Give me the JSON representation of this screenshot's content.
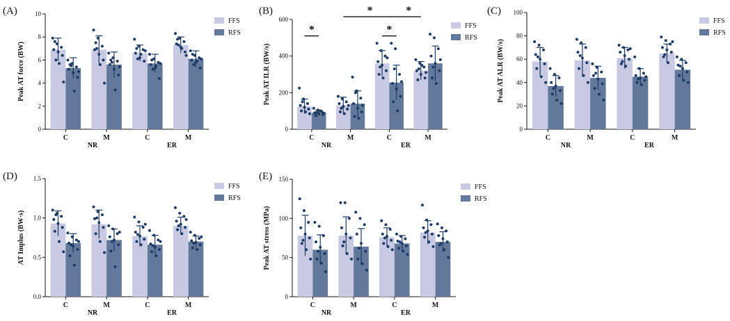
{
  "legend": {
    "ffs": "FFS",
    "rfs": "RFS"
  },
  "colors": {
    "ffs": "#c8cae3",
    "rfs": "#63799b",
    "dot": "#1c3a63",
    "axis": "#111111"
  },
  "chart_data": [
    {
      "type": "bar",
      "panel": "(A)",
      "ylabel": "Peak AT force (BW)",
      "ylim": [
        0,
        10
      ],
      "yticks": [
        "0",
        "2",
        "4",
        "6",
        "8",
        "10"
      ],
      "categories": [
        "C",
        "M",
        "C",
        "M"
      ],
      "groups": [
        "NR",
        "ER"
      ],
      "series": [
        {
          "name": "FFS",
          "values": [
            6.9,
            6.9,
            6.6,
            7.3
          ],
          "err": [
            1.0,
            1.2,
            0.7,
            0.7
          ],
          "points": [
            [
              7.9,
              7.4,
              7.1,
              6.9,
              6.7,
              6.4,
              7.6,
              5.7,
              4.1,
              6.0
            ],
            [
              8.6,
              7.9,
              7.2,
              6.9,
              6.5,
              6.0,
              7.5,
              5.6,
              4.0,
              7.0
            ],
            [
              7.8,
              7.2,
              6.9,
              6.6,
              6.2,
              5.9,
              7.0,
              6.5,
              6.8,
              6.1
            ],
            [
              8.3,
              7.9,
              7.6,
              7.4,
              7.1,
              6.7,
              7.8,
              7.0,
              6.4,
              7.3
            ]
          ]
        },
        {
          "name": "RFS",
          "values": [
            5.3,
            5.6,
            5.7,
            6.1
          ],
          "err": [
            0.9,
            1.1,
            0.8,
            0.7
          ],
          "points": [
            [
              6.0,
              5.7,
              5.4,
              5.2,
              4.9,
              4.5,
              5.6,
              3.3,
              5.0,
              5.5
            ],
            [
              6.6,
              6.2,
              5.9,
              5.6,
              5.2,
              4.7,
              6.0,
              3.4,
              5.4,
              5.8
            ],
            [
              6.5,
              6.1,
              5.8,
              5.6,
              5.3,
              4.4,
              6.0,
              5.5,
              5.7,
              5.2
            ],
            [
              6.8,
              6.4,
              6.2,
              6.0,
              5.8,
              5.3,
              6.5,
              5.9,
              6.1,
              5.6
            ]
          ]
        }
      ]
    },
    {
      "type": "bar",
      "panel": "(B)",
      "ylabel": "Peak AT ILR (BW/s)",
      "ylim": [
        0,
        600
      ],
      "yticks": [
        "0",
        "200",
        "400",
        "600"
      ],
      "categories": [
        "C",
        "M",
        "C",
        "M"
      ],
      "groups": [
        "NR",
        "ER"
      ],
      "series": [
        {
          "name": "FFS",
          "values": [
            125,
            130,
            360,
            320
          ],
          "err": [
            40,
            45,
            70,
            50
          ],
          "points": [
            [
              225,
              165,
              140,
              130,
              120,
              110,
              100,
              95,
              85,
              150
            ],
            [
              180,
              165,
              150,
              140,
              125,
              110,
              95,
              85,
              130,
              115
            ],
            [
              470,
              430,
              400,
              370,
              350,
              320,
              300,
              280,
              390,
              340
            ],
            [
              380,
              360,
              340,
              320,
              300,
              280,
              270,
              350,
              310,
              330
            ]
          ]
        },
        {
          "name": "RFS",
          "values": [
            90,
            140,
            255,
            360
          ],
          "err": [
            15,
            70,
            95,
            95
          ],
          "points": [
            [
              115,
              105,
              95,
              90,
              85,
              80,
              75,
              100,
              88,
              92
            ],
            [
              285,
              210,
              170,
              140,
              115,
              95,
              70,
              60,
              130,
              200
            ],
            [
              470,
              440,
              300,
              250,
              220,
              180,
              150,
              100,
              260,
              330
            ],
            [
              520,
              500,
              440,
              400,
              360,
              320,
              280,
              250,
              380,
              340
            ]
          ]
        }
      ],
      "annotations": [
        {
          "text": "*",
          "from": 0,
          "to": 1,
          "level": 510
        },
        {
          "text": "*",
          "from": 2,
          "to": 5,
          "level": 615
        },
        {
          "text": "*",
          "from": 4,
          "to": 5,
          "level": 510
        },
        {
          "text": "*",
          "from": 5,
          "to": 6,
          "level": 615
        }
      ]
    },
    {
      "type": "bar",
      "panel": "(C)",
      "ylabel": "Peak AT ALR (BW/s)",
      "ylim": [
        0,
        100
      ],
      "yticks": [
        "0",
        "20",
        "40",
        "60",
        "80",
        "100"
      ],
      "categories": [
        "C",
        "M",
        "C",
        "M"
      ],
      "groups": [
        "NR",
        "ER"
      ],
      "series": [
        {
          "name": "FFS",
          "values": [
            58,
            59,
            61,
            65
          ],
          "err": [
            12,
            14,
            9,
            8
          ],
          "points": [
            [
              75,
              72,
              68,
              64,
              60,
              56,
              52,
              45,
              40,
              62
            ],
            [
              77,
              74,
              70,
              66,
              61,
              57,
              52,
              46,
              40,
              63
            ],
            [
              72,
              70,
              68,
              66,
              63,
              60,
              56,
              54,
              69,
              58
            ],
            [
              79,
              76,
              73,
              70,
              68,
              66,
              62,
              57,
              75,
              64
            ]
          ]
        },
        {
          "name": "RFS",
          "values": [
            37,
            44,
            45,
            51
          ],
          "err": [
            9,
            10,
            7,
            8
          ],
          "points": [
            [
              52,
              47,
              44,
              40,
              37,
              33,
              30,
              25,
              22,
              35
            ],
            [
              56,
              53,
              49,
              46,
              43,
              39,
              35,
              30,
              25,
              48
            ],
            [
              62,
              52,
              48,
              46,
              44,
              42,
              40,
              38,
              45,
              43
            ],
            [
              62,
              60,
              57,
              55,
              52,
              49,
              46,
              42,
              40,
              54
            ]
          ]
        }
      ]
    },
    {
      "type": "bar",
      "panel": "(D)",
      "ylabel": "AT Implus (BW·s)",
      "ylim": [
        0,
        1.5
      ],
      "yticks": [
        "0.0",
        "0.5",
        "1.0",
        "1.5"
      ],
      "categories": [
        "C",
        "M",
        "C",
        "M"
      ],
      "groups": [
        "NR",
        "ER"
      ],
      "series": [
        {
          "name": "FFS",
          "values": [
            0.93,
            0.92,
            0.77,
            0.9
          ],
          "err": [
            0.16,
            0.18,
            0.13,
            0.11
          ],
          "points": [
            [
              1.1,
              1.06,
              1.02,
              0.98,
              0.93,
              0.88,
              0.83,
              0.7,
              0.57,
              1.04
            ],
            [
              1.14,
              1.08,
              1.04,
              0.99,
              0.94,
              0.88,
              0.8,
              0.7,
              0.56,
              1.0
            ],
            [
              1.01,
              0.95,
              0.88,
              0.82,
              0.77,
              0.73,
              0.7,
              0.66,
              0.92,
              0.79
            ],
            [
              1.13,
              1.06,
              1.02,
              0.96,
              0.92,
              0.88,
              0.85,
              0.8,
              0.98,
              0.9
            ]
          ]
        },
        {
          "name": "RFS",
          "values": [
            0.68,
            0.72,
            0.66,
            0.7
          ],
          "err": [
            0.12,
            0.14,
            0.12,
            0.07
          ],
          "points": [
            [
              0.81,
              0.76,
              0.72,
              0.68,
              0.64,
              0.6,
              0.52,
              0.4,
              0.7,
              0.66
            ],
            [
              0.9,
              0.86,
              0.8,
              0.76,
              0.72,
              0.66,
              0.58,
              0.38,
              0.82,
              0.7
            ],
            [
              0.84,
              0.78,
              0.72,
              0.67,
              0.63,
              0.6,
              0.57,
              0.52,
              0.7,
              0.65
            ],
            [
              0.82,
              0.78,
              0.74,
              0.71,
              0.69,
              0.66,
              0.62,
              0.6,
              0.76,
              0.68
            ]
          ]
        }
      ]
    },
    {
      "type": "bar",
      "panel": "(E)",
      "ylabel": "Peak AT stress (MPa)",
      "ylim": [
        0,
        150
      ],
      "yticks": [
        "0",
        "50",
        "100",
        "150"
      ],
      "categories": [
        "C",
        "M",
        "C",
        "M"
      ],
      "groups": [
        "NR",
        "ER"
      ],
      "series": [
        {
          "name": "FFS",
          "values": [
            78,
            78,
            76,
            82
          ],
          "err": [
            26,
            24,
            12,
            15
          ],
          "points": [
            [
              125,
              110,
              95,
              88,
              80,
              75,
              68,
              60,
              48,
              72
            ],
            [
              120,
              120,
              100,
              88,
              80,
              75,
              65,
              55,
              48,
              70
            ],
            [
              97,
              92,
              86,
              80,
              77,
              72,
              68,
              64,
              60,
              75
            ],
            [
              117,
              98,
              92,
              88,
              84,
              80,
              76,
              70,
              64,
              82
            ]
          ]
        },
        {
          "name": "RFS",
          "values": [
            60,
            64,
            68,
            70
          ],
          "err": [
            19,
            23,
            10,
            13
          ],
          "points": [
            [
              95,
              90,
              78,
              70,
              63,
              55,
              48,
              43,
              32,
              58
            ],
            [
              108,
              100,
              92,
              80,
              68,
              58,
              48,
              42,
              34,
              62
            ],
            [
              80,
              77,
              74,
              71,
              68,
              65,
              62,
              58,
              54,
              70
            ],
            [
              93,
              88,
              84,
              78,
              74,
              70,
              66,
              60,
              50,
              68
            ]
          ]
        }
      ]
    }
  ]
}
